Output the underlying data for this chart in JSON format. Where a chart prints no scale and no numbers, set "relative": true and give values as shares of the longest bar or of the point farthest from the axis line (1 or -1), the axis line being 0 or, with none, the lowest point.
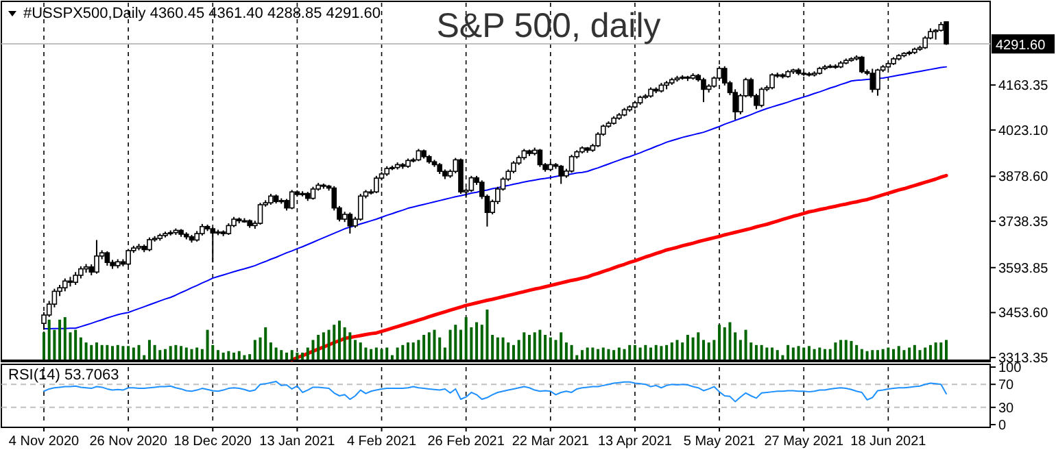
{
  "chart_data": [
    {
      "type": "candlestick",
      "title": "S&P 500, daily",
      "subtitle": "#USSPX500,Daily 4360.45 4361.40 4288.85 4291.60",
      "categories": [
        "4 Nov 2020",
        null,
        null,
        null,
        null,
        null,
        null,
        null,
        null,
        null,
        null,
        null,
        null,
        null,
        null,
        null,
        "26 Nov 2020",
        null,
        null,
        null,
        null,
        null,
        null,
        null,
        null,
        null,
        null,
        null,
        null,
        null,
        null,
        null,
        "18 Dec 2020",
        null,
        null,
        null,
        null,
        null,
        null,
        null,
        null,
        null,
        null,
        null,
        null,
        null,
        null,
        null,
        "13 Jan 2021",
        null,
        null,
        null,
        null,
        null,
        null,
        null,
        null,
        null,
        null,
        null,
        null,
        null,
        null,
        null,
        "4 Feb 2021",
        null,
        null,
        null,
        null,
        null,
        null,
        null,
        null,
        null,
        null,
        null,
        null,
        null,
        null,
        null,
        "26 Feb 2021",
        null,
        null,
        null,
        null,
        null,
        null,
        null,
        null,
        null,
        null,
        null,
        null,
        null,
        null,
        null,
        "22 Mar 2021",
        null,
        null,
        null,
        null,
        null,
        null,
        null,
        null,
        null,
        null,
        null,
        null,
        null,
        null,
        null,
        "13 Apr 2021",
        null,
        null,
        null,
        null,
        null,
        null,
        null,
        null,
        null,
        null,
        null,
        null,
        null,
        null,
        null,
        "5 May 2021",
        null,
        null,
        null,
        null,
        null,
        null,
        null,
        null,
        null,
        null,
        null,
        null,
        null,
        null,
        null,
        "27 May 2021",
        null,
        null,
        null,
        null,
        null,
        null,
        null,
        null,
        null,
        null,
        null,
        null,
        null,
        null,
        null,
        "18 Jun 2021",
        null,
        null,
        null,
        null,
        null,
        null,
        null,
        null,
        null,
        null,
        null
      ],
      "ohlc": [
        [
          3420,
          3455,
          3400,
          3446
        ],
        [
          3446,
          3490,
          3440,
          3480
        ],
        [
          3480,
          3528,
          3470,
          3520
        ],
        [
          3520,
          3540,
          3505,
          3531
        ],
        [
          3531,
          3560,
          3520,
          3552
        ],
        [
          3552,
          3565,
          3535,
          3548
        ],
        [
          3548,
          3580,
          3540,
          3570
        ],
        [
          3570,
          3598,
          3560,
          3590
        ],
        [
          3590,
          3605,
          3578,
          3596
        ],
        [
          3596,
          3604,
          3570,
          3580
        ],
        [
          3580,
          3680,
          3575,
          3630
        ],
        [
          3630,
          3648,
          3620,
          3640
        ],
        [
          3640,
          3645,
          3600,
          3610
        ],
        [
          3610,
          3618,
          3590,
          3600
        ],
        [
          3600,
          3620,
          3592,
          3612
        ],
        [
          3612,
          3620,
          3598,
          3605
        ],
        [
          3605,
          3652,
          3600,
          3647
        ],
        [
          3647,
          3662,
          3640,
          3655
        ],
        [
          3655,
          3668,
          3648,
          3660
        ],
        [
          3660,
          3666,
          3642,
          3650
        ],
        [
          3650,
          3688,
          3645,
          3681
        ],
        [
          3681,
          3692,
          3675,
          3685
        ],
        [
          3685,
          3700,
          3678,
          3694
        ],
        [
          3694,
          3706,
          3688,
          3700
        ],
        [
          3700,
          3710,
          3694,
          3703
        ],
        [
          3703,
          3716,
          3696,
          3710
        ],
        [
          3710,
          3714,
          3690,
          3698
        ],
        [
          3698,
          3704,
          3682,
          3690
        ],
        [
          3690,
          3696,
          3672,
          3680
        ],
        [
          3680,
          3708,
          3675,
          3700
        ],
        [
          3700,
          3730,
          3694,
          3722
        ],
        [
          3722,
          3728,
          3708,
          3715
        ],
        [
          3715,
          3720,
          3610,
          3702
        ],
        [
          3702,
          3712,
          3695,
          3705
        ],
        [
          3705,
          3710,
          3692,
          3700
        ],
        [
          3700,
          3732,
          3696,
          3725
        ],
        [
          3725,
          3752,
          3720,
          3745
        ],
        [
          3745,
          3750,
          3732,
          3740
        ],
        [
          3740,
          3748,
          3734,
          3740
        ],
        [
          3740,
          3744,
          3718,
          3725
        ],
        [
          3725,
          3740,
          3715,
          3732
        ],
        [
          3732,
          3796,
          3728,
          3790
        ],
        [
          3790,
          3804,
          3784,
          3796
        ],
        [
          3796,
          3824,
          3790,
          3817
        ],
        [
          3817,
          3822,
          3794,
          3800
        ],
        [
          3800,
          3810,
          3793,
          3803
        ],
        [
          3803,
          3808,
          3772,
          3780
        ],
        [
          3780,
          3836,
          3776,
          3830
        ],
        [
          3830,
          3835,
          3815,
          3822
        ],
        [
          3822,
          3832,
          3816,
          3825
        ],
        [
          3825,
          3830,
          3802,
          3810
        ],
        [
          3810,
          3846,
          3806,
          3839
        ],
        [
          3839,
          3858,
          3834,
          3851
        ],
        [
          3851,
          3856,
          3840,
          3848
        ],
        [
          3848,
          3852,
          3834,
          3842
        ],
        [
          3842,
          3848,
          3772,
          3780
        ],
        [
          3780,
          3786,
          3738,
          3745
        ],
        [
          3745,
          3768,
          3736,
          3760
        ],
        [
          3760,
          3766,
          3700,
          3724
        ],
        [
          3724,
          3752,
          3718,
          3745
        ],
        [
          3745,
          3824,
          3740,
          3817
        ],
        [
          3817,
          3836,
          3810,
          3830
        ],
        [
          3830,
          3838,
          3822,
          3830
        ],
        [
          3830,
          3880,
          3826,
          3873
        ],
        [
          3873,
          3892,
          3866,
          3886
        ],
        [
          3886,
          3910,
          3880,
          3903
        ],
        [
          3903,
          3912,
          3898,
          3906
        ],
        [
          3906,
          3922,
          3900,
          3915
        ],
        [
          3915,
          3920,
          3902,
          3910
        ],
        [
          3910,
          3934,
          3905,
          3928
        ],
        [
          3928,
          3936,
          3922,
          3930
        ],
        [
          3930,
          3964,
          3926,
          3958
        ],
        [
          3958,
          3962,
          3934,
          3940
        ],
        [
          3940,
          3945,
          3918,
          3924
        ],
        [
          3924,
          3930,
          3908,
          3915
        ],
        [
          3915,
          3920,
          3886,
          3894
        ],
        [
          3894,
          3900,
          3870,
          3880
        ],
        [
          3880,
          3900,
          3874,
          3894
        ],
        [
          3894,
          3936,
          3888,
          3930
        ],
        [
          3930,
          3934,
          3824,
          3830
        ],
        [
          3830,
          3842,
          3812,
          3835
        ],
        [
          3835,
          3880,
          3830,
          3874
        ],
        [
          3874,
          3880,
          3852,
          3860
        ],
        [
          3860,
          3866,
          3808,
          3816
        ],
        [
          3816,
          3822,
          3722,
          3766
        ],
        [
          3766,
          3806,
          3760,
          3800
        ],
        [
          3800,
          3846,
          3792,
          3839
        ],
        [
          3839,
          3876,
          3834,
          3870
        ],
        [
          3870,
          3900,
          3864,
          3894
        ],
        [
          3894,
          3926,
          3888,
          3920
        ],
        [
          3920,
          3944,
          3914,
          3937
        ],
        [
          3937,
          3964,
          3930,
          3958
        ],
        [
          3958,
          3962,
          3942,
          3950
        ],
        [
          3950,
          3968,
          3944,
          3960
        ],
        [
          3960,
          3964,
          3908,
          3915
        ],
        [
          3915,
          3920,
          3893,
          3900
        ],
        [
          3900,
          3922,
          3895,
          3915
        ],
        [
          3915,
          3920,
          3902,
          3910
        ],
        [
          3910,
          3914,
          3855,
          3880
        ],
        [
          3880,
          3902,
          3874,
          3895
        ],
        [
          3895,
          3946,
          3890,
          3940
        ],
        [
          3940,
          3960,
          3934,
          3955
        ],
        [
          3955,
          3972,
          3950,
          3967
        ],
        [
          3967,
          3970,
          3952,
          3960
        ],
        [
          3960,
          3980,
          3955,
          3974
        ],
        [
          3974,
          4016,
          3970,
          4010
        ],
        [
          4010,
          4040,
          4005,
          4035
        ],
        [
          4035,
          4050,
          4030,
          4044
        ],
        [
          4044,
          4066,
          4040,
          4060
        ],
        [
          4060,
          4076,
          4055,
          4070
        ],
        [
          4070,
          4092,
          4066,
          4086
        ],
        [
          4086,
          4100,
          4080,
          4095
        ],
        [
          4095,
          4114,
          4090,
          4108
        ],
        [
          4108,
          4130,
          4102,
          4125
        ],
        [
          4125,
          4135,
          4120,
          4129
        ],
        [
          4129,
          4156,
          4124,
          4150
        ],
        [
          4150,
          4156,
          4138,
          4145
        ],
        [
          4145,
          4170,
          4140,
          4163
        ],
        [
          4163,
          4176,
          4150,
          4170
        ],
        [
          4170,
          4186,
          4164,
          4180
        ],
        [
          4180,
          4192,
          4174,
          4185
        ],
        [
          4185,
          4194,
          4180,
          4188
        ],
        [
          4188,
          4192,
          4176,
          4185
        ],
        [
          4185,
          4200,
          4180,
          4193
        ],
        [
          4193,
          4198,
          4174,
          4180
        ],
        [
          4180,
          4186,
          4110,
          4150
        ],
        [
          4150,
          4166,
          4140,
          4160
        ],
        [
          4160,
          4190,
          4155,
          4185
        ],
        [
          4185,
          4222,
          4180,
          4215
        ],
        [
          4215,
          4222,
          4162,
          4170
        ],
        [
          4170,
          4176,
          4132,
          4140
        ],
        [
          4140,
          4150,
          4055,
          4080
        ],
        [
          4080,
          4136,
          4072,
          4130
        ],
        [
          4130,
          4186,
          4125,
          4180
        ],
        [
          4180,
          4186,
          4124,
          4130
        ],
        [
          4130,
          4136,
          4088,
          4100
        ],
        [
          4100,
          4156,
          4094,
          4150
        ],
        [
          4150,
          4162,
          4144,
          4155
        ],
        [
          4155,
          4200,
          4150,
          4195
        ],
        [
          4195,
          4202,
          4186,
          4195
        ],
        [
          4195,
          4200,
          4184,
          4190
        ],
        [
          4190,
          4210,
          4186,
          4205
        ],
        [
          4205,
          4214,
          4198,
          4210
        ],
        [
          4210,
          4216,
          4194,
          4200
        ],
        [
          4200,
          4205,
          4192,
          4198
        ],
        [
          4198,
          4204,
          4190,
          4195
        ],
        [
          4195,
          4206,
          4190,
          4200
        ],
        [
          4200,
          4220,
          4196,
          4215
        ],
        [
          4215,
          4226,
          4210,
          4220
        ],
        [
          4220,
          4228,
          4216,
          4222
        ],
        [
          4222,
          4228,
          4214,
          4220
        ],
        [
          4220,
          4238,
          4216,
          4232
        ],
        [
          4232,
          4246,
          4228,
          4240
        ],
        [
          4240,
          4250,
          4236,
          4245
        ],
        [
          4245,
          4256,
          4240,
          4250
        ],
        [
          4250,
          4254,
          4200,
          4205
        ],
        [
          4205,
          4212,
          4194,
          4200
        ],
        [
          4200,
          4214,
          4140,
          4150
        ],
        [
          4150,
          4214,
          4130,
          4210
        ],
        [
          4210,
          4226,
          4204,
          4220
        ],
        [
          4220,
          4234,
          4216,
          4230
        ],
        [
          4230,
          4250,
          4226,
          4245
        ],
        [
          4245,
          4260,
          4240,
          4255
        ],
        [
          4255,
          4266,
          4250,
          4262
        ],
        [
          4262,
          4270,
          4256,
          4265
        ],
        [
          4265,
          4280,
          4260,
          4275
        ],
        [
          4275,
          4286,
          4270,
          4280
        ],
        [
          4280,
          4316,
          4276,
          4310
        ],
        [
          4310,
          4340,
          4306,
          4330
        ],
        [
          4330,
          4338,
          4305,
          4334
        ],
        [
          4334,
          4360,
          4330,
          4352
        ],
        [
          4360.45,
          4361.4,
          4288.85,
          4291.6
        ]
      ],
      "series": [
        {
          "type": "line",
          "color": "#0000ff",
          "values": [
            3403,
            3403,
            3404,
            3404,
            3404,
            3405,
            3405,
            3410,
            3415,
            3420,
            3426,
            3431,
            3437,
            3442,
            3447,
            3451,
            3454,
            3460,
            3466,
            3472,
            3478,
            3484,
            3490,
            3496,
            3501,
            3508,
            3516,
            3523,
            3531,
            3538,
            3546,
            3553,
            3561,
            3566,
            3571,
            3576,
            3581,
            3586,
            3590,
            3595,
            3600,
            3607,
            3613,
            3620,
            3626,
            3633,
            3640,
            3646,
            3653,
            3659,
            3666,
            3673,
            3680,
            3687,
            3694,
            3701,
            3708,
            3715,
            3720,
            3725,
            3730,
            3735,
            3740,
            3745,
            3751,
            3757,
            3762,
            3768,
            3773,
            3779,
            3783,
            3787,
            3791,
            3795,
            3799,
            3803,
            3807,
            3811,
            3815,
            3818,
            3822,
            3826,
            3829,
            3833,
            3836,
            3840,
            3843,
            3847,
            3850,
            3854,
            3857,
            3861,
            3864,
            3867,
            3870,
            3872,
            3875,
            3878,
            3881,
            3883,
            3886,
            3889,
            3891,
            3894,
            3900,
            3905,
            3911,
            3917,
            3923,
            3929,
            3935,
            3940,
            3946,
            3952,
            3959,
            3965,
            3972,
            3978,
            3985,
            3990,
            3995,
            4000,
            4004,
            4008,
            4012,
            4016,
            4022,
            4028,
            4034,
            4041,
            4047,
            4053,
            4059,
            4065,
            4071,
            4078,
            4084,
            4090,
            4095,
            4100,
            4105,
            4110,
            4116,
            4121,
            4126,
            4131,
            4137,
            4142,
            4148,
            4154,
            4159,
            4165,
            4170,
            4176,
            4178,
            4179,
            4181,
            4182,
            4184,
            4185,
            4188,
            4191,
            4194,
            4197,
            4200,
            4203,
            4206,
            4209,
            4212,
            4215,
            4218,
            4220
          ]
        },
        {
          "type": "line",
          "color": "#ff0000",
          "values": [
            null,
            null,
            null,
            null,
            null,
            null,
            null,
            null,
            null,
            null,
            null,
            null,
            null,
            null,
            null,
            null,
            null,
            null,
            null,
            null,
            null,
            null,
            null,
            null,
            null,
            null,
            null,
            null,
            null,
            null,
            null,
            null,
            null,
            null,
            null,
            null,
            null,
            null,
            null,
            null,
            null,
            null,
            null,
            null,
            null,
            null,
            null,
            3306,
            3313,
            3319,
            3326,
            3333,
            3340,
            3346,
            3353,
            3360,
            3366,
            3373,
            3376,
            3379,
            3382,
            3385,
            3388,
            3390,
            3395,
            3400,
            3405,
            3410,
            3415,
            3420,
            3425,
            3430,
            3435,
            3441,
            3446,
            3451,
            3456,
            3461,
            3466,
            3471,
            3476,
            3480,
            3484,
            3488,
            3492,
            3495,
            3499,
            3503,
            3507,
            3511,
            3515,
            3519,
            3523,
            3527,
            3530,
            3534,
            3538,
            3542,
            3546,
            3550,
            3554,
            3557,
            3561,
            3565,
            3571,
            3576,
            3582,
            3587,
            3593,
            3599,
            3604,
            3610,
            3615,
            3621,
            3627,
            3632,
            3638,
            3643,
            3649,
            3653,
            3657,
            3662,
            3666,
            3670,
            3675,
            3679,
            3683,
            3687,
            3691,
            3696,
            3700,
            3704,
            3708,
            3712,
            3716,
            3721,
            3725,
            3729,
            3734,
            3739,
            3744,
            3749,
            3754,
            3758,
            3763,
            3768,
            3771,
            3775,
            3778,
            3782,
            3785,
            3789,
            3792,
            3796,
            3799,
            3803,
            3806,
            3811,
            3816,
            3821,
            3826,
            3831,
            3836,
            3840,
            3845,
            3850,
            3855,
            3860,
            3865,
            3870,
            3876,
            3881
          ]
        }
      ],
      "ylim": [
        3305,
        4420
      ],
      "yticks": [
        3313.35,
        {
          "value": 3453.6,
          "label": "3453.60"
        },
        3593.85,
        3738.35,
        {
          "value": 3878.6,
          "label": "3878.60"
        },
        {
          "value": 4023.1,
          "label": "4023.10"
        },
        4163.35
      ],
      "ref_lines": [
        {
          "axis": "y",
          "value": 4291.6,
          "label": "4291.60",
          "color": "#c0c0c0"
        }
      ],
      "grid": "x"
    },
    {
      "type": "bar",
      "relative": true,
      "color": "#006400",
      "categories": [
        null,
        null,
        null,
        null,
        null,
        null,
        null,
        null,
        null,
        null,
        null,
        null,
        null,
        null,
        null,
        null,
        null,
        null,
        null,
        null,
        null,
        null,
        null,
        null,
        null,
        null,
        null,
        null,
        null,
        null,
        null,
        null,
        null,
        null,
        null,
        null,
        null,
        null,
        null,
        null,
        null,
        null,
        null,
        null,
        null,
        null,
        null,
        null,
        null,
        null,
        null,
        null,
        null,
        null,
        null,
        null,
        null,
        null,
        null,
        null,
        null,
        null,
        null,
        null,
        null,
        null,
        null,
        null,
        null,
        null,
        null,
        null,
        null,
        null,
        null,
        null,
        null,
        null,
        null,
        null,
        null,
        null,
        null,
        null,
        null,
        null,
        null,
        null,
        null,
        null,
        null,
        null,
        null,
        null,
        null,
        null,
        null,
        null,
        null,
        null,
        null,
        null,
        null,
        null,
        null,
        null,
        null,
        null,
        null,
        null,
        null,
        null,
        null,
        null,
        null,
        null,
        null,
        null,
        null,
        null,
        null,
        null,
        null,
        null,
        null,
        null,
        null,
        null,
        null,
        null,
        null,
        null,
        null,
        null,
        null,
        null,
        null,
        null,
        null,
        null,
        null,
        null,
        null,
        null,
        null,
        null,
        null,
        null,
        null,
        null,
        null,
        null,
        null,
        null,
        null,
        null,
        null,
        null,
        null,
        null,
        null,
        null,
        null,
        null,
        null,
        null,
        null,
        null,
        null,
        null,
        null,
        null
      ],
      "values": [
        0.55,
        0.8,
        0.6,
        0.8,
        0.85,
        0.55,
        0.6,
        0.45,
        0.35,
        0.3,
        0.35,
        0.3,
        0.3,
        0.28,
        0.3,
        0.28,
        0.28,
        0.25,
        0.3,
        0.1,
        0.4,
        0.3,
        0.2,
        0.22,
        0.28,
        0.3,
        0.28,
        0.25,
        0.22,
        0.25,
        0.22,
        0.6,
        0.3,
        0.2,
        0.15,
        0.18,
        0.15,
        0.18,
        0.1,
        0.12,
        0.4,
        0.45,
        0.65,
        0.35,
        0.25,
        0.2,
        0.15,
        0.2,
        0.15,
        0.15,
        0.25,
        0.4,
        0.5,
        0.55,
        0.6,
        0.7,
        0.78,
        0.65,
        0.55,
        0.4,
        0.35,
        0.25,
        0.22,
        0.25,
        0.22,
        0.25,
        0.1,
        0.25,
        0.3,
        0.35,
        0.35,
        0.4,
        0.5,
        0.55,
        0.6,
        0.45,
        0.25,
        0.6,
        0.7,
        0.6,
        0.85,
        0.65,
        0.75,
        0.7,
        1.0,
        0.5,
        0.45,
        0.45,
        0.35,
        0.3,
        0.4,
        0.55,
        0.5,
        0.55,
        0.6,
        0.5,
        0.45,
        0.4,
        0.55,
        0.35,
        0.3,
        0.1,
        0.2,
        0.25,
        0.25,
        0.22,
        0.25,
        0.22,
        0.2,
        0.25,
        0.22,
        0.3,
        0.3,
        0.25,
        0.3,
        0.25,
        0.3,
        0.28,
        0.3,
        0.35,
        0.4,
        0.35,
        0.5,
        0.45,
        0.55,
        0.4,
        0.35,
        0.4,
        0.7,
        0.65,
        0.75,
        0.55,
        0.4,
        0.6,
        0.35,
        0.3,
        0.3,
        0.25,
        0.25,
        0.2,
        0.1,
        0.3,
        0.25,
        0.28,
        0.25,
        0.28,
        0.22,
        0.25,
        0.22,
        0.22,
        0.35,
        0.4,
        0.4,
        0.38,
        0.3,
        0.22,
        0.18,
        0.2,
        0.2,
        0.22,
        0.25,
        0.22,
        0.28,
        0.2,
        0.25,
        0.3,
        0.2,
        0.25,
        0.3,
        0.35,
        0.35,
        0.4
      ],
      "tick_labels": false
    },
    {
      "type": "line",
      "title": "RSI(14) 53.7063",
      "tick_labels": "y",
      "categories": [
        null,
        null,
        null,
        null,
        null,
        null,
        null,
        null,
        null,
        null,
        null,
        null,
        null,
        null,
        null,
        null,
        null,
        null,
        null,
        null,
        null,
        null,
        null,
        null,
        null,
        null,
        null,
        null,
        null,
        null,
        null,
        null,
        null,
        null,
        null,
        null,
        null,
        null,
        null,
        null,
        null,
        null,
        null,
        null,
        null,
        null,
        null,
        null,
        null,
        null,
        null,
        null,
        null,
        null,
        null,
        null,
        null,
        null,
        null,
        null,
        null,
        null,
        null,
        null,
        null,
        null,
        null,
        null,
        null,
        null,
        null,
        null,
        null,
        null,
        null,
        null,
        null,
        null,
        null,
        null,
        null,
        null,
        null,
        null,
        null,
        null,
        null,
        null,
        null,
        null,
        null,
        null,
        null,
        null,
        null,
        null,
        null,
        null,
        null,
        null,
        null,
        null,
        null,
        null,
        null,
        null,
        null,
        null,
        null,
        null,
        null,
        null,
        null,
        null,
        null,
        null,
        null,
        null,
        null,
        null,
        null,
        null,
        null,
        null,
        null,
        null,
        null,
        null,
        null,
        null,
        null,
        null,
        null,
        null,
        null,
        null,
        null,
        null,
        null,
        null,
        null,
        null,
        null,
        null,
        null,
        null,
        null,
        null,
        null,
        null,
        null,
        null,
        null,
        null,
        null,
        null,
        null,
        null,
        null,
        null,
        null,
        null,
        null,
        null,
        null,
        null,
        null,
        null,
        null,
        null,
        null,
        null
      ],
      "series": [
        {
          "color": "#1e90ff",
          "values": [
            58,
            62,
            64,
            65,
            66,
            66,
            67,
            65,
            64,
            63,
            66,
            65,
            62,
            60,
            61,
            60,
            64,
            64,
            63,
            63,
            64,
            65,
            66,
            66,
            67,
            64,
            62,
            59,
            58,
            60,
            63,
            61,
            59,
            58,
            60,
            63,
            64,
            63,
            61,
            58,
            60,
            70,
            71,
            73,
            75,
            68,
            69,
            62,
            67,
            56,
            60,
            65,
            65,
            64,
            63,
            55,
            50,
            52,
            44,
            50,
            60,
            54,
            58,
            60,
            62,
            63,
            63,
            63,
            63,
            64,
            66,
            64,
            63,
            62,
            61,
            60,
            62,
            55,
            62,
            44,
            48,
            56,
            52,
            44,
            47,
            52,
            56,
            58,
            60,
            62,
            64,
            66,
            64,
            60,
            58,
            59,
            58,
            52,
            56,
            58,
            56,
            62,
            64,
            65,
            66,
            66,
            68,
            70,
            72,
            73,
            74,
            74,
            72,
            71,
            70,
            66,
            68,
            64,
            68,
            70,
            69,
            70,
            69,
            66,
            64,
            59,
            62,
            66,
            57,
            50,
            49,
            40,
            48,
            55,
            50,
            46,
            55,
            56,
            57,
            58,
            58,
            59,
            59,
            58,
            58,
            57,
            58,
            60,
            60,
            62,
            63,
            64,
            63,
            61,
            58,
            56,
            43,
            47,
            59,
            60,
            62,
            63,
            64,
            64,
            65,
            66,
            67,
            70,
            72,
            71,
            70,
            53.7063
          ]
        }
      ],
      "ylim": [
        0,
        100
      ],
      "yticks": [
        100,
        70,
        30,
        0
      ],
      "grid": "x",
      "ref_lines": [
        {
          "axis": "y",
          "value": 70,
          "color": "#c0c0c0",
          "line_style": "dashed"
        },
        {
          "axis": "y",
          "value": 30,
          "color": "#c0c0c0",
          "line_style": "dashed"
        }
      ]
    }
  ]
}
